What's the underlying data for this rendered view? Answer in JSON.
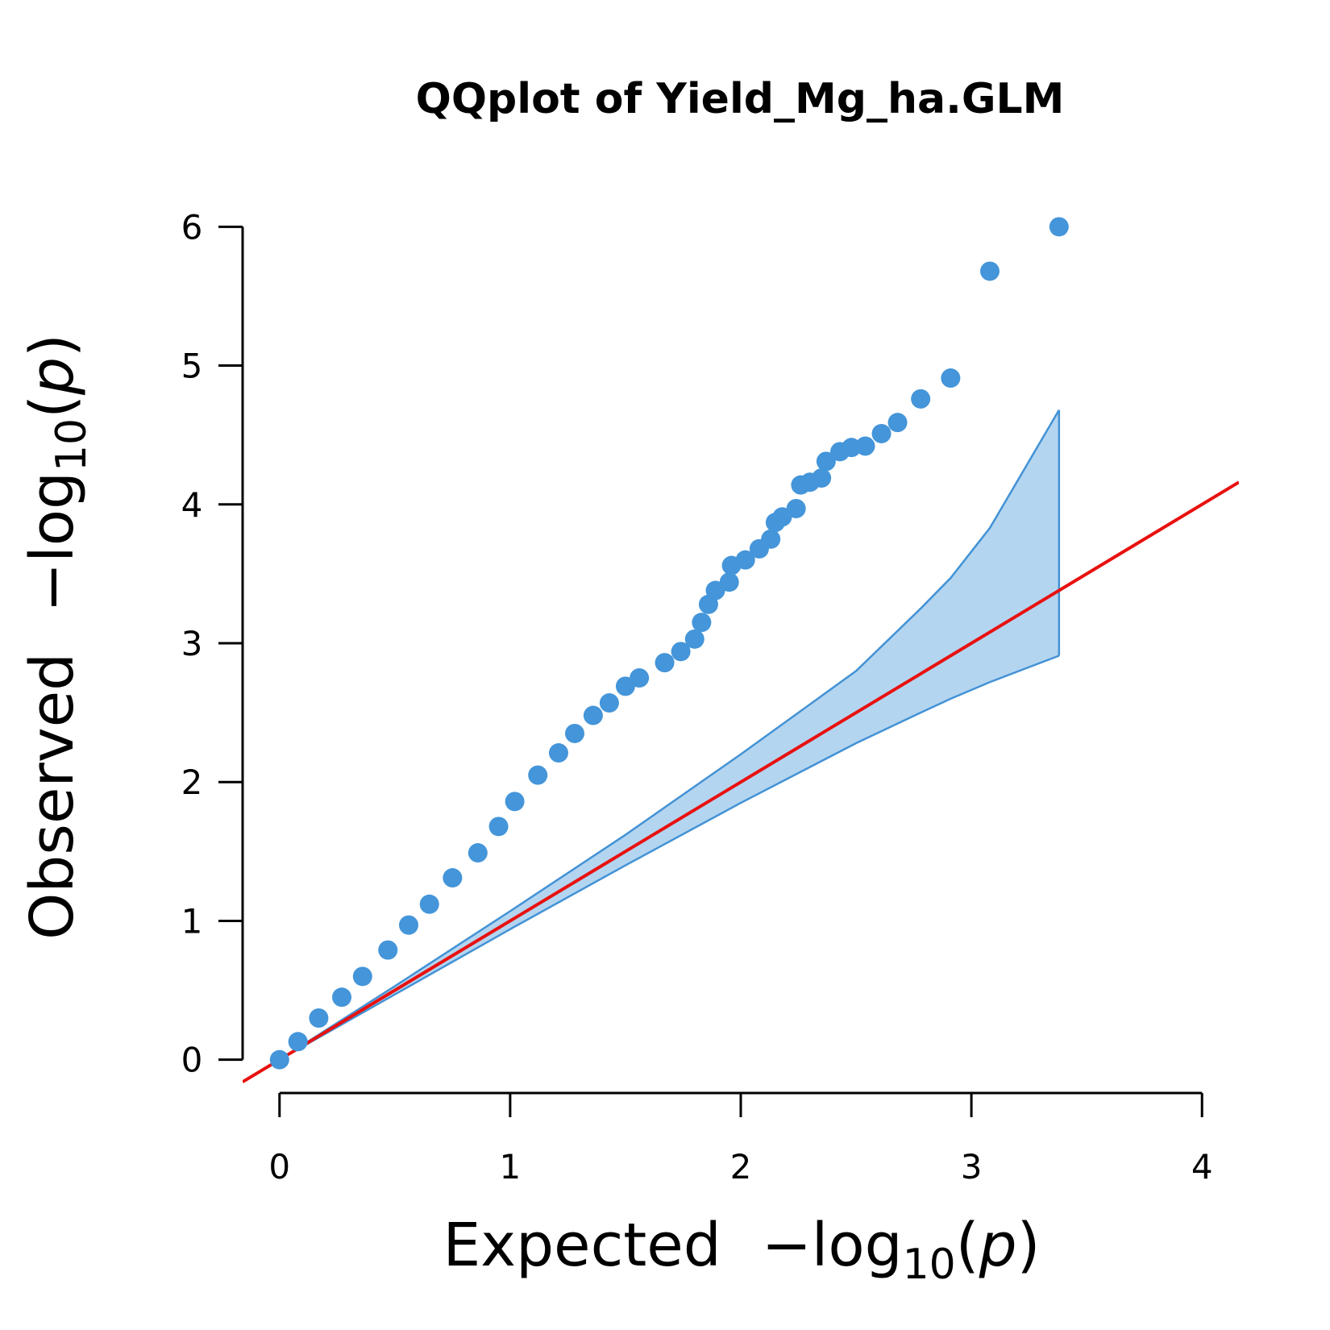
{
  "chart_data": {
    "type": "qq",
    "title": "QQplot of Yield_Mg_ha.GLM",
    "xlabel": "Expected",
    "ylabel": "Observed",
    "scale_label": [
      "−log",
      "10",
      "(",
      "p",
      ")"
    ],
    "x": [
      0,
      0.08,
      0.17,
      0.27,
      0.36,
      0.47,
      0.56,
      0.65,
      0.75,
      0.86,
      0.95,
      1.02,
      1.12,
      1.21,
      1.28,
      1.36,
      1.43,
      1.5,
      1.56,
      1.67,
      1.74,
      1.8,
      1.83,
      1.86,
      1.89,
      1.95,
      1.96,
      2.02,
      2.08,
      2.13,
      2.15,
      2.18,
      2.24,
      2.26,
      2.3,
      2.35,
      2.37,
      2.43,
      2.48,
      2.54,
      2.61,
      2.68,
      2.78,
      2.91,
      3.08,
      3.38
    ],
    "values": [
      0,
      0.13,
      0.3,
      0.45,
      0.6,
      0.79,
      0.97,
      1.12,
      1.31,
      1.49,
      1.68,
      1.86,
      2.05,
      2.21,
      2.35,
      2.48,
      2.57,
      2.69,
      2.75,
      2.86,
      2.94,
      3.03,
      3.15,
      3.28,
      3.38,
      3.44,
      3.56,
      3.6,
      3.68,
      3.75,
      3.87,
      3.91,
      3.97,
      4.14,
      4.16,
      4.19,
      4.31,
      4.38,
      4.41,
      4.42,
      4.51,
      4.59,
      4.76,
      4.91,
      5.68,
      6.0
    ],
    "color": "#4495d9",
    "band": {
      "x": [
        0,
        0.5,
        1,
        1.5,
        2,
        2.5,
        2.78,
        2.91,
        3.08,
        3.38
      ],
      "upper": [
        0,
        0.53,
        1.07,
        1.62,
        2.2,
        2.8,
        3.25,
        3.47,
        3.83,
        4.68
      ],
      "lower": [
        0,
        0.47,
        0.94,
        1.4,
        1.85,
        2.28,
        2.5,
        2.6,
        2.72,
        2.91
      ],
      "color": "#b4d5f0",
      "edge_color": "#4392d5"
    },
    "reference_line_color": "#e8110f",
    "xlim": [
      -0.16,
      4.16
    ],
    "ylim": [
      -0.24,
      6.24
    ],
    "xticks": [
      0,
      1,
      2,
      3,
      4
    ],
    "yticks": [
      0,
      1,
      2,
      3,
      4,
      5,
      6
    ]
  }
}
